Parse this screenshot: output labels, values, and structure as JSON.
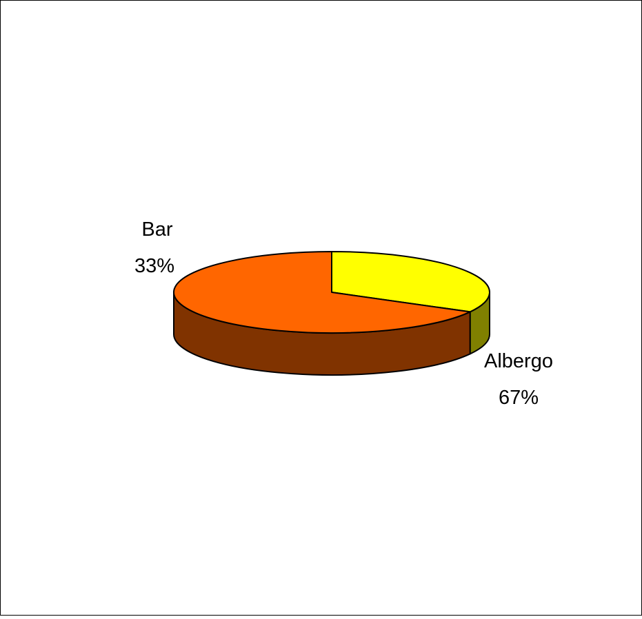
{
  "chart_data": {
    "type": "pie",
    "style": "3d",
    "slices": [
      {
        "label": "Bar",
        "value": 33,
        "value_label": "33%",
        "top_color": "#FFFF00",
        "side_color": "#808000"
      },
      {
        "label": "Albergo",
        "value": 67,
        "value_label": "67%",
        "top_color": "#FF6600",
        "side_color": "#803300"
      }
    ],
    "legend": "none",
    "data_labels": "outside"
  }
}
